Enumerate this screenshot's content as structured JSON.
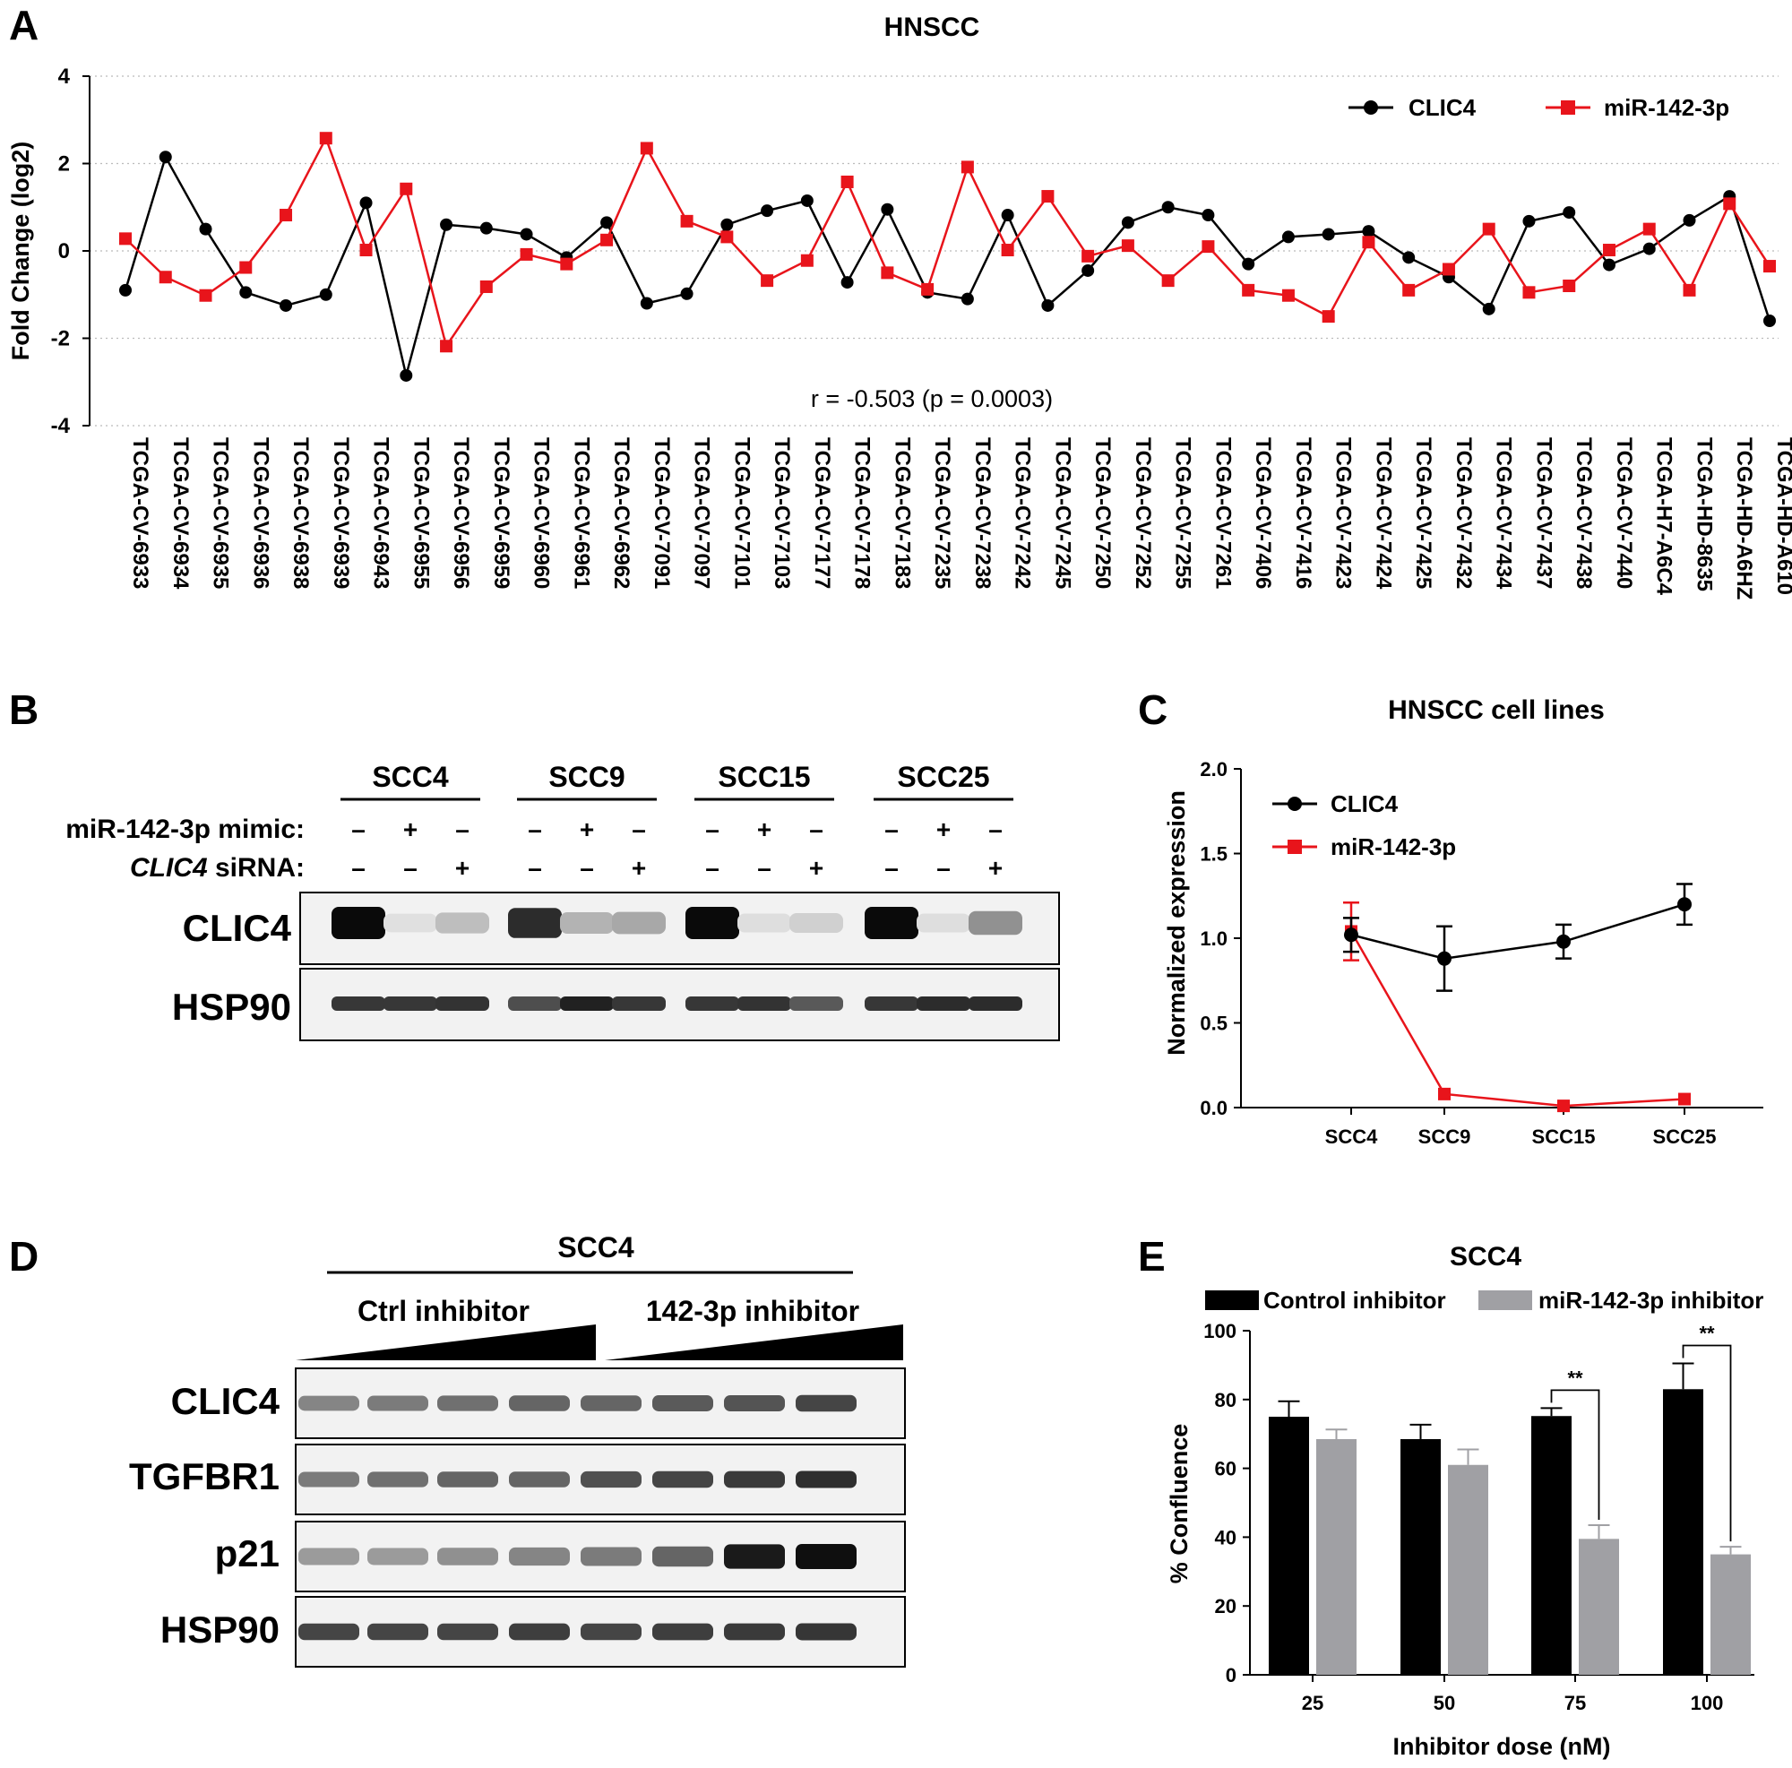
{
  "panels": {
    "A": "A",
    "B": "B",
    "C": "C",
    "D": "D",
    "E": "E"
  },
  "chart_data": [
    {
      "type": "line",
      "panel": "A",
      "title": "HNSCC",
      "ylabel": "Fold Change (log2)",
      "ylim": [
        -4,
        4
      ],
      "yticks": [
        "-4",
        "-2",
        "0",
        "2",
        "4"
      ],
      "grid": "dotted horizontal",
      "legend_position": "top-right",
      "annotation": "r = -0.503 (p = 0.0003)",
      "categories": [
        "TCGA-CV-6933",
        "TCGA-CV-6934",
        "TCGA-CV-6935",
        "TCGA-CV-6936",
        "TCGA-CV-6938",
        "TCGA-CV-6939",
        "TCGA-CV-6943",
        "TCGA-CV-6955",
        "TCGA-CV-6956",
        "TCGA-CV-6959",
        "TCGA-CV-6960",
        "TCGA-CV-6961",
        "TCGA-CV-6962",
        "TCGA-CV-7091",
        "TCGA-CV-7097",
        "TCGA-CV-7101",
        "TCGA-CV-7103",
        "TCGA-CV-7177",
        "TCGA-CV-7178",
        "TCGA-CV-7183",
        "TCGA-CV-7235",
        "TCGA-CV-7238",
        "TCGA-CV-7242",
        "TCGA-CV-7245",
        "TCGA-CV-7250",
        "TCGA-CV-7252",
        "TCGA-CV-7255",
        "TCGA-CV-7261",
        "TCGA-CV-7406",
        "TCGA-CV-7416",
        "TCGA-CV-7423",
        "TCGA-CV-7424",
        "TCGA-CV-7425",
        "TCGA-CV-7432",
        "TCGA-CV-7434",
        "TCGA-CV-7437",
        "TCGA-CV-7438",
        "TCGA-CV-7440",
        "TCGA-H7-A6C4",
        "TCGA-HD-8635",
        "TCGA-HD-A6HZ",
        "TCGA-HD-A610"
      ],
      "series": [
        {
          "name": "CLIC4",
          "color": "#000000",
          "marker": "circle",
          "values": [
            -0.9,
            2.15,
            0.5,
            -0.95,
            -1.25,
            -1.0,
            1.1,
            -2.85,
            0.6,
            0.52,
            0.38,
            -0.15,
            0.65,
            -1.2,
            -0.98,
            0.6,
            0.92,
            1.15,
            -0.72,
            0.95,
            -0.95,
            -1.1,
            0.82,
            -1.25,
            -0.45,
            0.65,
            1.0,
            0.82,
            -0.3,
            0.32,
            0.38,
            0.45,
            -0.15,
            -0.6,
            -1.33,
            0.68,
            0.88,
            -0.32,
            0.05,
            0.7,
            1.25,
            -1.6
          ]
        },
        {
          "name": "miR-142-3p",
          "color": "#e8141b",
          "marker": "square",
          "values": [
            0.28,
            -0.6,
            -1.02,
            -0.38,
            0.82,
            2.58,
            0.02,
            1.42,
            -2.18,
            -0.82,
            -0.08,
            -0.3,
            0.25,
            2.35,
            0.68,
            0.32,
            -0.68,
            -0.22,
            1.58,
            -0.5,
            -0.88,
            1.92,
            0.02,
            1.25,
            -0.12,
            0.12,
            -0.68,
            0.1,
            -0.9,
            -1.02,
            -1.5,
            0.2,
            -0.9,
            -0.42,
            0.5,
            -0.95,
            -0.8,
            0.02,
            0.5,
            -0.9,
            1.08,
            -0.35
          ]
        }
      ]
    },
    {
      "type": "line",
      "panel": "C",
      "title": "HNSCC cell lines",
      "ylabel": "Normalized expression",
      "ylim": [
        0,
        2.0
      ],
      "yticks": [
        "0.0",
        "0.5",
        "1.0",
        "1.5",
        "2.0"
      ],
      "legend_position": "top-left",
      "categories": [
        "SCC4",
        "SCC9",
        "SCC15",
        "SCC25"
      ],
      "series": [
        {
          "name": "CLIC4",
          "color": "#000000",
          "marker": "circle",
          "values": [
            1.02,
            0.88,
            0.98,
            1.2
          ],
          "errors": [
            0.1,
            0.19,
            0.1,
            0.12
          ]
        },
        {
          "name": "miR-142-3p",
          "color": "#e8141b",
          "marker": "square",
          "values": [
            1.04,
            0.08,
            0.01,
            0.05
          ],
          "errors": [
            0.17,
            0.0,
            0.0,
            0.0
          ]
        }
      ]
    },
    {
      "type": "bar",
      "panel": "E",
      "title": "SCC4",
      "xlabel": "Inhibitor dose (nM)",
      "ylabel": "% Confluence",
      "ylim": [
        0,
        100
      ],
      "yticks": [
        "0",
        "20",
        "40",
        "60",
        "80",
        "100"
      ],
      "legend_position": "top",
      "categories": [
        "25",
        "50",
        "75",
        "100"
      ],
      "series": [
        {
          "name": "Control inhibitor",
          "color": "#000000",
          "values": [
            75,
            68.5,
            75.2,
            83
          ],
          "errors": [
            4.5,
            4.2,
            2.3,
            7.5
          ]
        },
        {
          "name": "miR-142-3p inhibitor",
          "color": "#a0a0a4",
          "values": [
            68.5,
            61,
            39.5,
            35
          ],
          "errors": [
            2.8,
            4.5,
            4.0,
            2.2
          ]
        }
      ],
      "significance": [
        {
          "category": "75",
          "label": "**"
        },
        {
          "category": "100",
          "label": "**"
        }
      ]
    }
  ],
  "blotB": {
    "cell_lines": [
      "SCC4",
      "SCC9",
      "SCC15",
      "SCC25"
    ],
    "row1_label": "miR-142-3p mimic:",
    "row2_prefix": "CLIC4",
    "row2_suffix": " siRNA:",
    "row1_signs": [
      "–",
      "+",
      "–",
      "–",
      "+",
      "–",
      "–",
      "+",
      "–",
      "–",
      "+",
      "–"
    ],
    "row2_signs": [
      "–",
      "–",
      "+",
      "–",
      "–",
      "+",
      "–",
      "–",
      "+",
      "–",
      "–",
      "+"
    ],
    "bands": [
      "CLIC4",
      "HSP90"
    ],
    "clic4_intensity": [
      1.0,
      0.05,
      0.2,
      0.85,
      0.25,
      0.3,
      1.0,
      0.06,
      0.12,
      1.0,
      0.06,
      0.4
    ],
    "hsp90_intensity": [
      0.8,
      0.8,
      0.82,
      0.7,
      0.9,
      0.8,
      0.8,
      0.82,
      0.65,
      0.8,
      0.85,
      0.85
    ]
  },
  "blotD": {
    "header": "SCC4",
    "group1": "Ctrl inhibitor",
    "group2": "142-3p inhibitor",
    "bands": [
      "CLIC4",
      "TGFBR1",
      "p21",
      "HSP90"
    ],
    "intensity": {
      "CLIC4": [
        0.45,
        0.5,
        0.55,
        0.6,
        0.6,
        0.65,
        0.68,
        0.75
      ],
      "TGFBR1": [
        0.5,
        0.55,
        0.6,
        0.6,
        0.7,
        0.75,
        0.8,
        0.85
      ],
      "p21": [
        0.35,
        0.35,
        0.4,
        0.45,
        0.5,
        0.6,
        0.95,
        1.0
      ],
      "HSP90": [
        0.75,
        0.75,
        0.75,
        0.78,
        0.75,
        0.78,
        0.8,
        0.82
      ]
    }
  }
}
